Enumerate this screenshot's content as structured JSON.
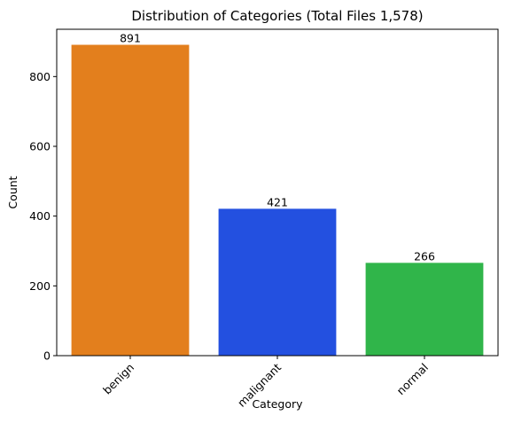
{
  "chart_data": {
    "type": "bar",
    "title": "Distribution of Categories (Total Files 1,578)",
    "xlabel": "Category",
    "ylabel": "Count",
    "categories": [
      "benign",
      "malignant",
      "normal"
    ],
    "values": [
      891,
      421,
      266
    ],
    "value_labels": [
      "891",
      "421",
      "266"
    ],
    "colors": [
      "#e37f1d",
      "#2350e0",
      "#30b54a"
    ],
    "ylim": [
      0,
      935.55
    ],
    "yticks": [
      0,
      200,
      400,
      600,
      800
    ],
    "ytick_labels": [
      "0",
      "200",
      "400",
      "600",
      "800"
    ],
    "xtick_rotation_deg": 45,
    "grid": false,
    "legend": "none"
  }
}
